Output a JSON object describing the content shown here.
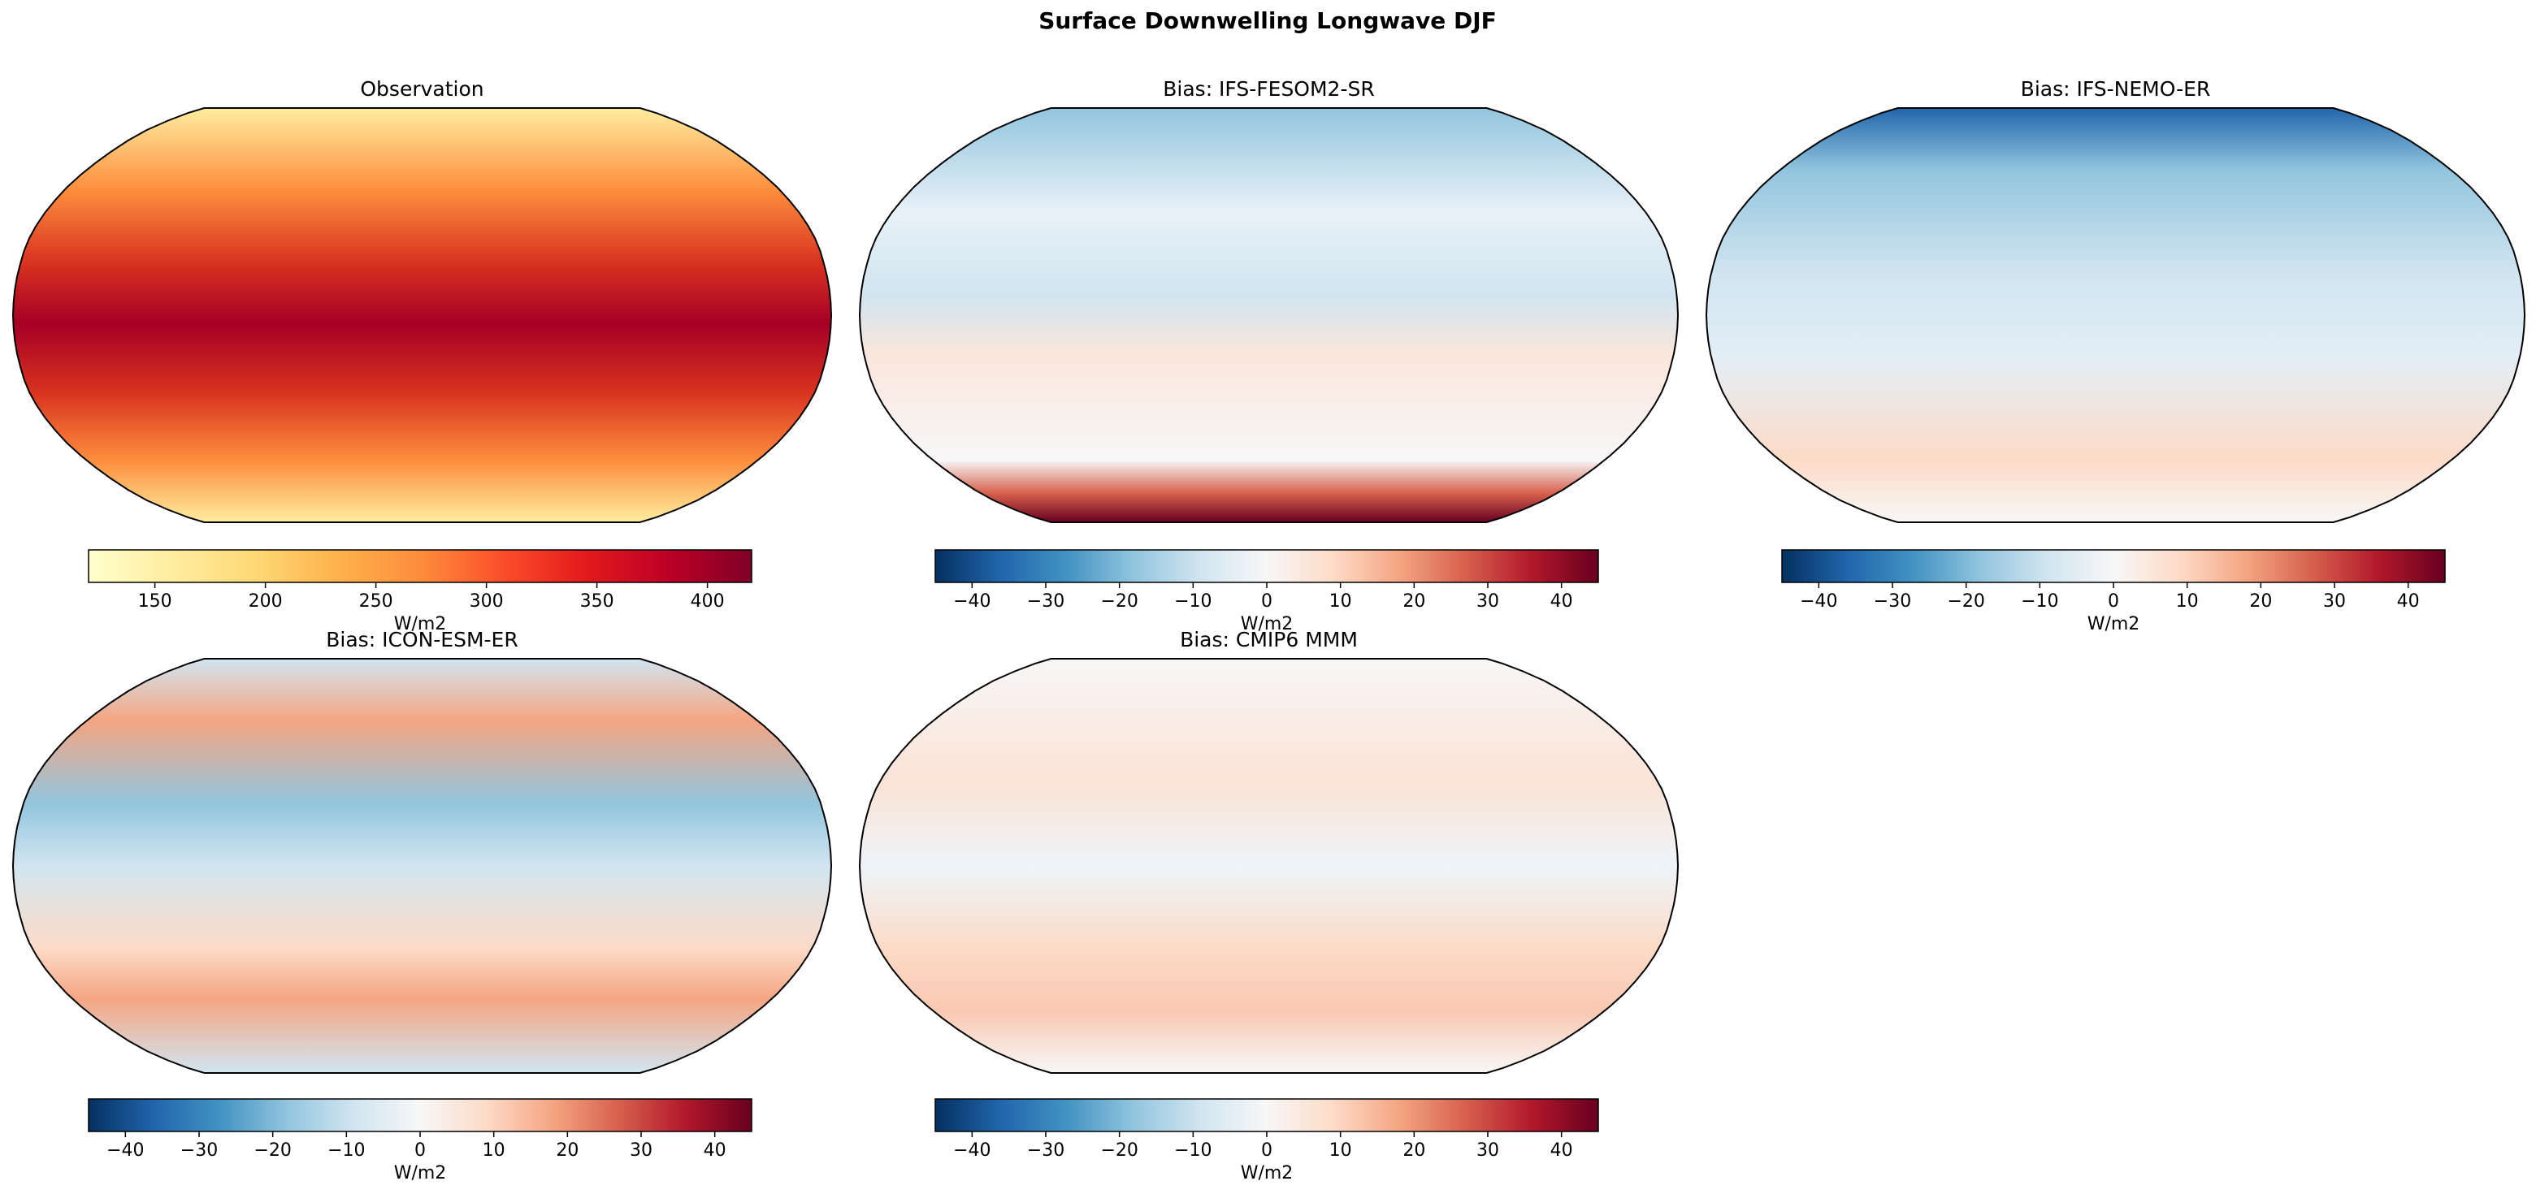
{
  "figure": {
    "title": "Surface Downwelling Longwave DJF",
    "panels": [
      {
        "title": "Observation",
        "colorbar": {
          "label": "W/m2",
          "cmap": "YlOrRd",
          "lim": [
            120,
            420
          ],
          "ticks": [
            150,
            200,
            250,
            300,
            350,
            400
          ]
        }
      },
      {
        "title": "Bias: IFS-FESOM2-SR",
        "colorbar": {
          "label": "W/m2",
          "cmap": "RdBu_r",
          "lim": [
            -45,
            45
          ],
          "ticks": [
            {
              "value": -40,
              "label": "−40"
            },
            {
              "value": -30,
              "label": "−30"
            },
            {
              "value": -20,
              "label": "−20"
            },
            {
              "value": -10,
              "label": "−10"
            },
            0,
            10,
            20,
            30,
            40
          ]
        }
      },
      {
        "title": "Bias: IFS-NEMO-ER",
        "colorbar": {
          "label": "W/m2",
          "cmap": "RdBu_r",
          "lim": [
            -45,
            45
          ],
          "ticks": [
            {
              "value": -40,
              "label": "−40"
            },
            {
              "value": -30,
              "label": "−30"
            },
            {
              "value": -20,
              "label": "−20"
            },
            {
              "value": -10,
              "label": "−10"
            },
            0,
            10,
            20,
            30,
            40
          ]
        }
      },
      {
        "title": "Bias: ICON-ESM-ER",
        "colorbar": {
          "label": "W/m2",
          "cmap": "RdBu_r",
          "lim": [
            -45,
            45
          ],
          "ticks": [
            {
              "value": -40,
              "label": "−40"
            },
            {
              "value": -30,
              "label": "−30"
            },
            {
              "value": -20,
              "label": "−20"
            },
            {
              "value": -10,
              "label": "−10"
            },
            0,
            10,
            20,
            30,
            40
          ]
        }
      },
      {
        "title": "Bias: CMIP6 MMM",
        "colorbar": {
          "label": "W/m2",
          "cmap": "RdBu_r",
          "lim": [
            -45,
            45
          ],
          "ticks": [
            {
              "value": -40,
              "label": "−40"
            },
            {
              "value": -30,
              "label": "−30"
            },
            {
              "value": -20,
              "label": "−20"
            },
            {
              "value": -10,
              "label": "−10"
            },
            0,
            10,
            20,
            30,
            40
          ]
        }
      }
    ]
  }
}
